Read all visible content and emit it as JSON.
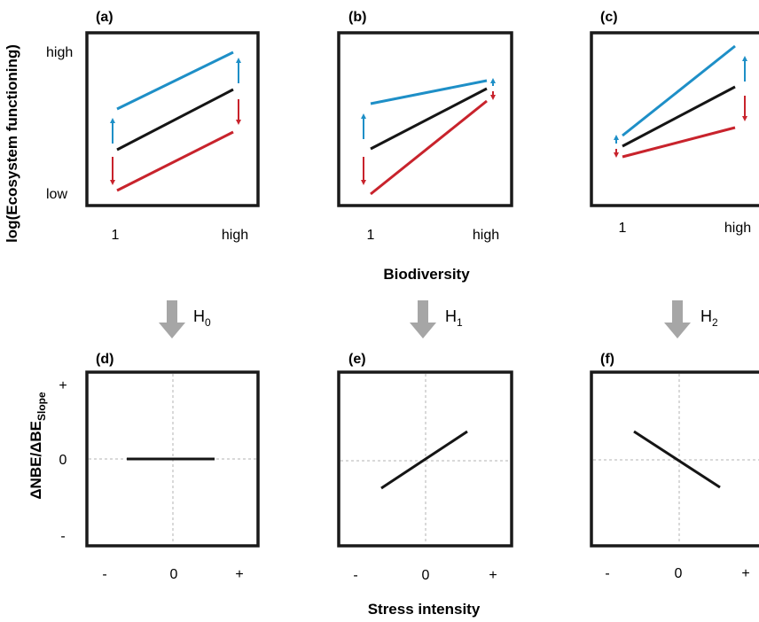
{
  "colors": {
    "frame": "#1a1a1a",
    "baseline": "#151515",
    "increase": "#1e8fc7",
    "decrease": "#c8232c",
    "hypothesis_arrow": "#a6a6a6",
    "zero_guide": "#b3b3b3"
  },
  "top_row": {
    "y_axis_title": "log(Ecosystem functioning)",
    "y_tick_high": "high",
    "y_tick_low": "low",
    "x_axis_title": "Biodiversity",
    "panels": [
      {
        "label": "(a)",
        "x_tick_left": "1",
        "x_tick_right": "high"
      },
      {
        "label": "(b)",
        "x_tick_left": "1",
        "x_tick_right": "high"
      },
      {
        "label": "(c)",
        "x_tick_left": "1",
        "x_tick_right": "high"
      }
    ]
  },
  "hypotheses": [
    {
      "main": "H",
      "sub": "0"
    },
    {
      "main": "H",
      "sub": "1"
    },
    {
      "main": "H",
      "sub": "2"
    }
  ],
  "bottom_row": {
    "y_axis_title_main": "ΔNBE/ΔBE",
    "y_axis_title_sub": "Slope",
    "y_tick_plus": "+",
    "y_tick_zero": "0",
    "y_tick_minus": "-",
    "x_axis_title": "Stress intensity",
    "panels": [
      {
        "label": "(d)",
        "x_tick_minus": "-",
        "x_tick_zero": "0",
        "x_tick_plus": "+"
      },
      {
        "label": "(e)",
        "x_tick_minus": "-",
        "x_tick_zero": "0",
        "x_tick_plus": "+"
      },
      {
        "label": "(f)",
        "x_tick_minus": "-",
        "x_tick_zero": "0",
        "x_tick_plus": "+"
      }
    ]
  }
}
